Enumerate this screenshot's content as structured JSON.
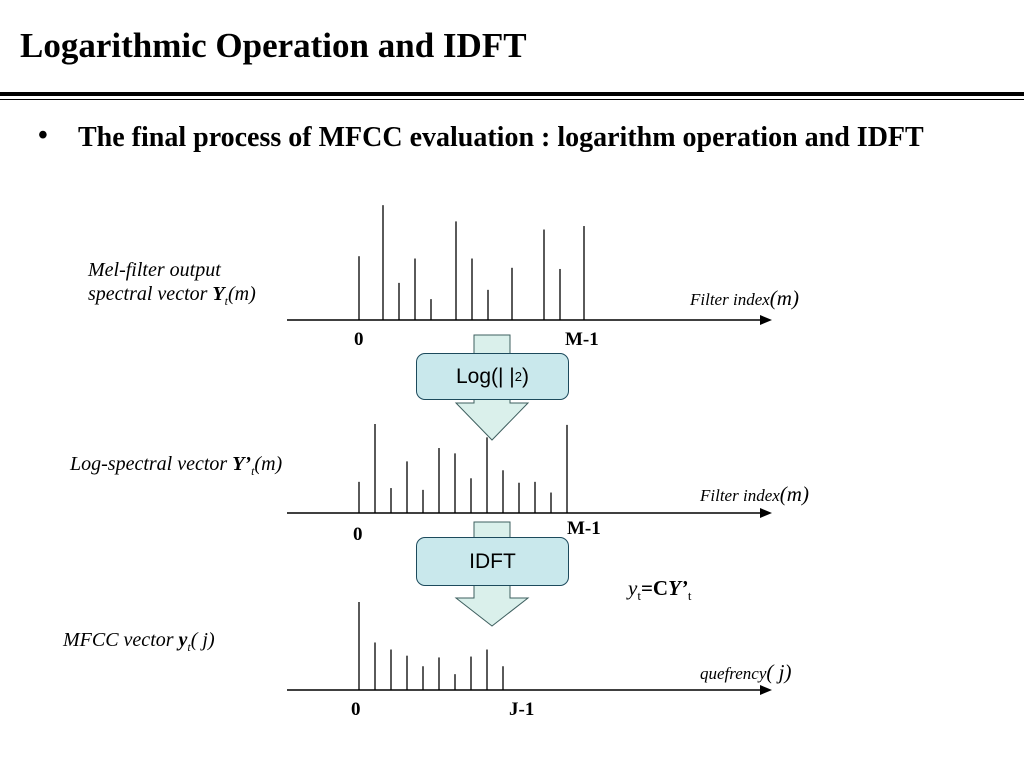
{
  "slide": {
    "title": "Logarithmic Operation and IDFT",
    "bullet": "The final process of MFCC evaluation : logarithm operation and IDFT"
  },
  "panels": {
    "mel": {
      "label_line1": "Mel-filter output",
      "label_prefix": "spectral vector ",
      "label_symbol": "Y",
      "label_sub": "t",
      "label_arg": "(m)",
      "axis_label": "Filter index",
      "axis_var": "(m)",
      "tick_start": "0",
      "tick_end": "M-1"
    },
    "log": {
      "label_prefix": "Log-spectral vector ",
      "label_symbol": "Y’",
      "label_sub": "t",
      "label_arg": "(m)",
      "axis_label": "Filter index",
      "axis_var": "(m)",
      "tick_start": "0",
      "tick_end": "M-1"
    },
    "mfcc": {
      "label_prefix": "MFCC vector ",
      "label_symbol": "y",
      "label_sub": "t",
      "label_arg": "( j)",
      "axis_label": "quefrency",
      "axis_var": "( j)",
      "tick_start": "0",
      "tick_end": "J-1"
    }
  },
  "operations": {
    "log_box": {
      "text": "Log(| |",
      "sup": "2",
      "close": ")"
    },
    "idft_box": {
      "text": "IDFT"
    }
  },
  "equation": {
    "lhs": "y",
    "lhs_sub": "t",
    "rhs_c": "=C",
    "rhs_y": "Y’",
    "rhs_sub": "t"
  },
  "chart_data": [
    {
      "type": "bar",
      "name": "mel",
      "values": [
        0.55,
        0.99,
        0.32,
        0.53,
        0.18,
        0.85,
        0.53,
        0.26,
        0.45,
        0.78,
        0.44,
        0.81
      ]
    },
    {
      "type": "bar",
      "name": "log",
      "values": [
        0.35,
        1.0,
        0.28,
        0.58,
        0.26,
        0.73,
        0.67,
        0.39,
        0.85,
        0.48,
        0.34,
        0.35,
        0.23,
        0.99
      ]
    },
    {
      "type": "bar",
      "name": "mfcc",
      "values": [
        1.0,
        0.54,
        0.46,
        0.39,
        0.27,
        0.37,
        0.18,
        0.38,
        0.46,
        0.27
      ]
    }
  ],
  "colors": {
    "box_fill": "#c9e8ec",
    "box_border": "#1c4a5c",
    "arrow_fill": "#daf0eb",
    "arrow_stroke": "#3e5f5f"
  }
}
